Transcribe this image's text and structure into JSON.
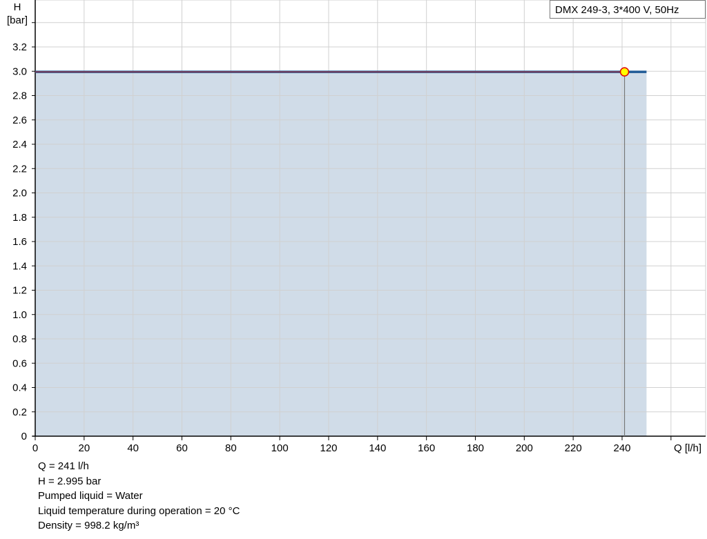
{
  "chart_data": {
    "type": "area",
    "title": "",
    "ylabel": "H",
    "yunit": "[bar]",
    "xlabel": "Q [l/h]",
    "xlim": [
      0,
      274
    ],
    "ylim": [
      0,
      3.4
    ],
    "xticks": [
      0,
      20,
      40,
      60,
      80,
      100,
      120,
      140,
      160,
      180,
      200,
      220,
      240
    ],
    "xgrid": [
      0,
      20,
      40,
      60,
      80,
      100,
      120,
      140,
      160,
      180,
      200,
      220,
      240,
      260
    ],
    "yticks": [
      "0",
      "0.2",
      "0.4",
      "0.6",
      "0.8",
      "1.0",
      "1.2",
      "1.4",
      "1.6",
      "1.8",
      "2.0",
      "2.2",
      "2.4",
      "2.6",
      "2.8",
      "3.0",
      "3.2"
    ],
    "ygrid_extra": [
      3.4
    ],
    "grid": true,
    "series": [
      {
        "name": "DMX 249-3, 3*400 V, 50Hz",
        "x": [
          0,
          250
        ],
        "y": [
          2.995,
          2.995
        ],
        "color": "#1f5a96",
        "fill": "#d0dce8"
      }
    ],
    "duty_point": {
      "x": 241,
      "y": 2.995,
      "color": "#ffff00",
      "border": "#e00000",
      "overlay_line_color": "#d02020"
    },
    "legend_placement": "top-right"
  },
  "info": [
    "Q = 241 l/h",
    "H = 2.995 bar",
    "Pumped liquid = Water",
    "Liquid temperature during operation = 20 °C",
    "Density = 998.2 kg/m³"
  ]
}
